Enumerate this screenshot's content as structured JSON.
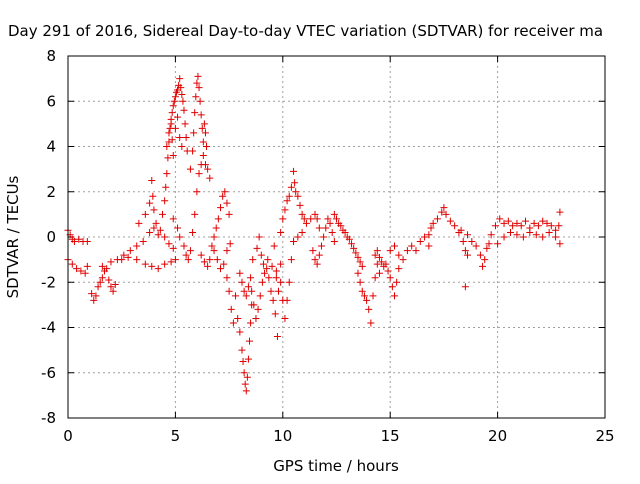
{
  "chart_data": {
    "type": "scatter",
    "title": "Day 291 of 2016, Sidereal Day-to-day VTEC variation (SDTVAR) for receiver ma",
    "xlabel": "GPS time / hours",
    "ylabel": "SDTVAR / TECUs",
    "xlim": [
      0,
      25
    ],
    "ylim": [
      -8,
      8
    ],
    "xticks": [
      0,
      5,
      10,
      15,
      20,
      25
    ],
    "yticks": [
      -8,
      -6,
      -4,
      -2,
      0,
      2,
      4,
      6,
      8
    ],
    "grid": true,
    "marker": "+",
    "marker_color": "#e00000",
    "series": [
      {
        "name": "SDTVAR",
        "points": [
          [
            0.0,
            0.3
          ],
          [
            0.1,
            0.1
          ],
          [
            0.2,
            -0.1
          ],
          [
            0.3,
            -0.2
          ],
          [
            0.5,
            -0.1
          ],
          [
            0.7,
            -0.2
          ],
          [
            0.9,
            -0.2
          ],
          [
            0.0,
            -1.0
          ],
          [
            0.2,
            -1.2
          ],
          [
            0.4,
            -1.4
          ],
          [
            0.6,
            -1.5
          ],
          [
            0.8,
            -1.6
          ],
          [
            0.9,
            -1.3
          ],
          [
            1.1,
            -2.5
          ],
          [
            1.2,
            -2.8
          ],
          [
            1.3,
            -2.6
          ],
          [
            1.4,
            -2.2
          ],
          [
            1.5,
            -2.0
          ],
          [
            1.6,
            -1.8
          ],
          [
            1.7,
            -1.5
          ],
          [
            1.8,
            -1.4
          ],
          [
            1.9,
            -1.9
          ],
          [
            2.0,
            -2.2
          ],
          [
            2.1,
            -2.4
          ],
          [
            2.2,
            -2.1
          ],
          [
            1.6,
            -1.3
          ],
          [
            2.0,
            -1.1
          ],
          [
            2.3,
            -1.0
          ],
          [
            2.6,
            -0.8
          ],
          [
            2.9,
            -0.6
          ],
          [
            3.2,
            -0.4
          ],
          [
            3.5,
            -0.2
          ],
          [
            3.8,
            0.2
          ],
          [
            4.0,
            0.4
          ],
          [
            4.2,
            0.1
          ],
          [
            2.5,
            -1.0
          ],
          [
            2.8,
            -0.9
          ],
          [
            3.2,
            -1.0
          ],
          [
            3.6,
            -1.2
          ],
          [
            3.9,
            -1.3
          ],
          [
            4.2,
            -1.4
          ],
          [
            4.5,
            -1.2
          ],
          [
            4.8,
            -1.1
          ],
          [
            5.0,
            -1.0
          ],
          [
            3.3,
            0.6
          ],
          [
            3.6,
            1.0
          ],
          [
            3.8,
            1.5
          ],
          [
            3.9,
            2.5
          ],
          [
            3.95,
            1.8
          ],
          [
            4.0,
            1.2
          ],
          [
            4.1,
            0.6
          ],
          [
            4.3,
            0.3
          ],
          [
            4.5,
            0.0
          ],
          [
            4.7,
            -0.3
          ],
          [
            4.9,
            -0.5
          ],
          [
            4.4,
            1.0
          ],
          [
            4.5,
            1.6
          ],
          [
            4.55,
            2.2
          ],
          [
            4.6,
            2.8
          ],
          [
            4.65,
            3.5
          ],
          [
            4.7,
            4.2
          ],
          [
            4.75,
            4.8
          ],
          [
            4.8,
            5.2
          ],
          [
            4.85,
            5.5
          ],
          [
            4.9,
            5.8
          ],
          [
            4.95,
            6.0
          ],
          [
            5.0,
            6.2
          ],
          [
            5.05,
            6.4
          ],
          [
            5.1,
            6.5
          ],
          [
            5.15,
            6.7
          ],
          [
            5.2,
            7.0
          ],
          [
            5.25,
            6.6
          ],
          [
            5.3,
            6.3
          ],
          [
            5.35,
            6.0
          ],
          [
            5.4,
            5.6
          ],
          [
            5.45,
            5.0
          ],
          [
            5.5,
            4.4
          ],
          [
            5.55,
            3.8
          ],
          [
            4.6,
            4.0
          ],
          [
            4.7,
            4.6
          ],
          [
            4.8,
            5.0
          ],
          [
            4.85,
            4.3
          ],
          [
            4.9,
            3.6
          ],
          [
            5.0,
            4.8
          ],
          [
            5.1,
            5.3
          ],
          [
            5.2,
            4.4
          ],
          [
            5.3,
            4.0
          ],
          [
            4.9,
            0.8
          ],
          [
            5.1,
            0.4
          ],
          [
            5.2,
            0.0
          ],
          [
            5.4,
            -0.4
          ],
          [
            5.5,
            -0.8
          ],
          [
            5.6,
            -1.0
          ],
          [
            5.7,
            -0.6
          ],
          [
            5.8,
            0.2
          ],
          [
            5.9,
            1.0
          ],
          [
            6.0,
            2.0
          ],
          [
            6.1,
            2.8
          ],
          [
            6.2,
            3.2
          ],
          [
            6.3,
            3.6
          ],
          [
            6.4,
            3.2
          ],
          [
            6.5,
            3.0
          ],
          [
            6.6,
            2.6
          ],
          [
            5.7,
            3.0
          ],
          [
            5.8,
            3.8
          ],
          [
            5.85,
            4.6
          ],
          [
            5.9,
            5.5
          ],
          [
            5.95,
            6.2
          ],
          [
            6.0,
            6.8
          ],
          [
            6.05,
            7.1
          ],
          [
            6.1,
            6.6
          ],
          [
            6.15,
            6.0
          ],
          [
            6.2,
            5.4
          ],
          [
            6.25,
            4.8
          ],
          [
            6.3,
            4.2
          ],
          [
            6.35,
            5.0
          ],
          [
            6.4,
            4.6
          ],
          [
            6.45,
            4.0
          ],
          [
            6.2,
            -0.8
          ],
          [
            6.35,
            -1.1
          ],
          [
            6.5,
            -1.3
          ],
          [
            6.6,
            -1.0
          ],
          [
            6.7,
            -0.4
          ],
          [
            6.8,
            0.0
          ],
          [
            6.9,
            0.4
          ],
          [
            7.0,
            0.8
          ],
          [
            7.1,
            1.3
          ],
          [
            7.2,
            1.8
          ],
          [
            7.3,
            2.0
          ],
          [
            7.4,
            1.5
          ],
          [
            7.5,
            1.0
          ],
          [
            6.8,
            -0.6
          ],
          [
            6.95,
            -1.0
          ],
          [
            7.1,
            -1.4
          ],
          [
            7.25,
            -1.2
          ],
          [
            7.4,
            -0.6
          ],
          [
            7.55,
            -0.3
          ],
          [
            7.4,
            -1.8
          ],
          [
            7.5,
            -2.4
          ],
          [
            7.6,
            -3.2
          ],
          [
            7.7,
            -3.8
          ],
          [
            7.8,
            -2.6
          ],
          [
            7.9,
            -3.6
          ],
          [
            8.0,
            -4.2
          ],
          [
            8.1,
            -5.0
          ],
          [
            8.15,
            -5.5
          ],
          [
            8.2,
            -6.0
          ],
          [
            8.25,
            -6.5
          ],
          [
            8.3,
            -6.8
          ],
          [
            8.35,
            -6.2
          ],
          [
            8.4,
            -5.4
          ],
          [
            8.45,
            -4.6
          ],
          [
            8.5,
            -3.8
          ],
          [
            8.55,
            -3.0
          ],
          [
            8.0,
            -1.6
          ],
          [
            8.1,
            -2.0
          ],
          [
            8.2,
            -2.4
          ],
          [
            8.3,
            -2.6
          ],
          [
            8.4,
            -2.2
          ],
          [
            8.5,
            -1.8
          ],
          [
            8.55,
            -2.4
          ],
          [
            8.65,
            -3.0
          ],
          [
            8.75,
            -3.6
          ],
          [
            8.85,
            -3.2
          ],
          [
            8.95,
            -2.6
          ],
          [
            9.05,
            -2.0
          ],
          [
            9.15,
            -1.6
          ],
          [
            9.25,
            -1.4
          ],
          [
            9.35,
            -1.8
          ],
          [
            9.45,
            -2.4
          ],
          [
            9.55,
            -2.8
          ],
          [
            9.65,
            -3.4
          ],
          [
            8.6,
            -1.0
          ],
          [
            8.8,
            -0.5
          ],
          [
            8.9,
            0.0
          ],
          [
            9.0,
            -0.8
          ],
          [
            9.1,
            -1.2
          ],
          [
            9.3,
            -1.0
          ],
          [
            9.5,
            -1.3
          ],
          [
            9.7,
            -1.5
          ],
          [
            9.9,
            -1.2
          ],
          [
            9.6,
            -0.4
          ],
          [
            9.7,
            -1.8
          ],
          [
            9.75,
            -4.4
          ],
          [
            9.8,
            -2.4
          ],
          [
            9.9,
            -2.0
          ],
          [
            10.0,
            -2.8
          ],
          [
            10.1,
            -3.6
          ],
          [
            10.2,
            -2.8
          ],
          [
            10.3,
            -2.0
          ],
          [
            10.4,
            -1.0
          ],
          [
            10.5,
            -0.2
          ],
          [
            9.9,
            0.2
          ],
          [
            10.0,
            0.8
          ],
          [
            10.1,
            1.2
          ],
          [
            10.2,
            1.6
          ],
          [
            10.3,
            1.8
          ],
          [
            10.4,
            2.2
          ],
          [
            10.5,
            2.9
          ],
          [
            10.55,
            2.4
          ],
          [
            10.6,
            2.0
          ],
          [
            10.7,
            1.8
          ],
          [
            10.8,
            1.4
          ],
          [
            10.9,
            1.0
          ],
          [
            11.0,
            0.8
          ],
          [
            10.5,
            -0.2
          ],
          [
            10.7,
            0.0
          ],
          [
            10.9,
            0.2
          ],
          [
            11.1,
            0.6
          ],
          [
            11.3,
            0.8
          ],
          [
            11.5,
            1.0
          ],
          [
            11.6,
            0.8
          ],
          [
            11.7,
            0.4
          ],
          [
            11.4,
            -0.6
          ],
          [
            11.5,
            -1.0
          ],
          [
            11.6,
            -1.2
          ],
          [
            11.7,
            -0.8
          ],
          [
            11.8,
            -0.4
          ],
          [
            11.9,
            0.0
          ],
          [
            12.0,
            0.4
          ],
          [
            12.1,
            0.8
          ],
          [
            12.2,
            0.6
          ],
          [
            12.3,
            0.2
          ],
          [
            12.4,
            -0.2
          ],
          [
            12.4,
            1.0
          ],
          [
            12.5,
            0.8
          ],
          [
            12.6,
            0.6
          ],
          [
            12.7,
            0.5
          ],
          [
            12.8,
            0.3
          ],
          [
            12.9,
            0.2
          ],
          [
            13.0,
            0.0
          ],
          [
            13.1,
            -0.1
          ],
          [
            13.2,
            -0.3
          ],
          [
            13.3,
            -0.5
          ],
          [
            13.4,
            -0.7
          ],
          [
            13.5,
            -0.9
          ],
          [
            13.6,
            -1.1
          ],
          [
            13.7,
            -1.3
          ],
          [
            13.5,
            -1.6
          ],
          [
            13.6,
            -2.0
          ],
          [
            13.7,
            -2.4
          ],
          [
            13.8,
            -2.6
          ],
          [
            13.9,
            -2.8
          ],
          [
            14.0,
            -3.2
          ],
          [
            14.1,
            -3.8
          ],
          [
            14.2,
            -2.6
          ],
          [
            14.3,
            -1.8
          ],
          [
            14.4,
            -1.2
          ],
          [
            14.5,
            -1.6
          ],
          [
            14.3,
            -0.8
          ],
          [
            14.4,
            -0.6
          ],
          [
            14.5,
            -0.9
          ],
          [
            14.6,
            -1.1
          ],
          [
            14.7,
            -1.3
          ],
          [
            14.8,
            -1.2
          ],
          [
            14.9,
            -1.5
          ],
          [
            15.0,
            -1.8
          ],
          [
            15.1,
            -2.2
          ],
          [
            15.2,
            -2.6
          ],
          [
            15.3,
            -2.0
          ],
          [
            15.4,
            -1.4
          ],
          [
            15.0,
            -0.6
          ],
          [
            15.2,
            -0.4
          ],
          [
            15.4,
            -0.8
          ],
          [
            15.6,
            -1.0
          ],
          [
            15.8,
            -0.6
          ],
          [
            16.0,
            -0.4
          ],
          [
            16.2,
            -0.6
          ],
          [
            16.4,
            -0.2
          ],
          [
            16.6,
            0.0
          ],
          [
            16.8,
            -0.4
          ],
          [
            16.8,
            0.1
          ],
          [
            16.9,
            0.4
          ],
          [
            17.0,
            0.6
          ],
          [
            17.2,
            0.8
          ],
          [
            17.4,
            1.1
          ],
          [
            17.5,
            1.3
          ],
          [
            17.6,
            1.0
          ],
          [
            17.8,
            0.7
          ],
          [
            18.0,
            0.5
          ],
          [
            18.2,
            0.2
          ],
          [
            18.4,
            -0.2
          ],
          [
            18.5,
            -0.6
          ],
          [
            18.6,
            -0.8
          ],
          [
            18.5,
            -2.2
          ],
          [
            18.3,
            0.3
          ],
          [
            18.6,
            0.1
          ],
          [
            18.8,
            -0.2
          ],
          [
            19.0,
            -0.4
          ],
          [
            19.2,
            -0.8
          ],
          [
            19.3,
            -1.3
          ],
          [
            19.4,
            -1.0
          ],
          [
            19.5,
            -0.5
          ],
          [
            19.6,
            -0.3
          ],
          [
            19.7,
            0.1
          ],
          [
            19.9,
            0.5
          ],
          [
            20.1,
            0.8
          ],
          [
            20.3,
            0.6
          ],
          [
            20.5,
            0.7
          ],
          [
            20.7,
            0.5
          ],
          [
            20.9,
            0.6
          ],
          [
            21.1,
            0.5
          ],
          [
            21.3,
            0.7
          ],
          [
            21.5,
            0.4
          ],
          [
            21.7,
            0.6
          ],
          [
            21.9,
            0.5
          ],
          [
            22.1,
            0.7
          ],
          [
            22.3,
            0.6
          ],
          [
            22.5,
            0.5
          ],
          [
            22.7,
            0.3
          ],
          [
            22.9,
            1.1
          ],
          [
            20.0,
            -0.3
          ],
          [
            20.3,
            0.0
          ],
          [
            20.6,
            0.2
          ],
          [
            20.9,
            0.1
          ],
          [
            21.2,
            0.0
          ],
          [
            21.5,
            0.2
          ],
          [
            21.8,
            0.1
          ],
          [
            22.1,
            0.0
          ],
          [
            22.4,
            0.2
          ],
          [
            22.7,
            0.0
          ],
          [
            22.9,
            -0.3
          ],
          [
            22.85,
            0.5
          ]
        ]
      }
    ]
  }
}
